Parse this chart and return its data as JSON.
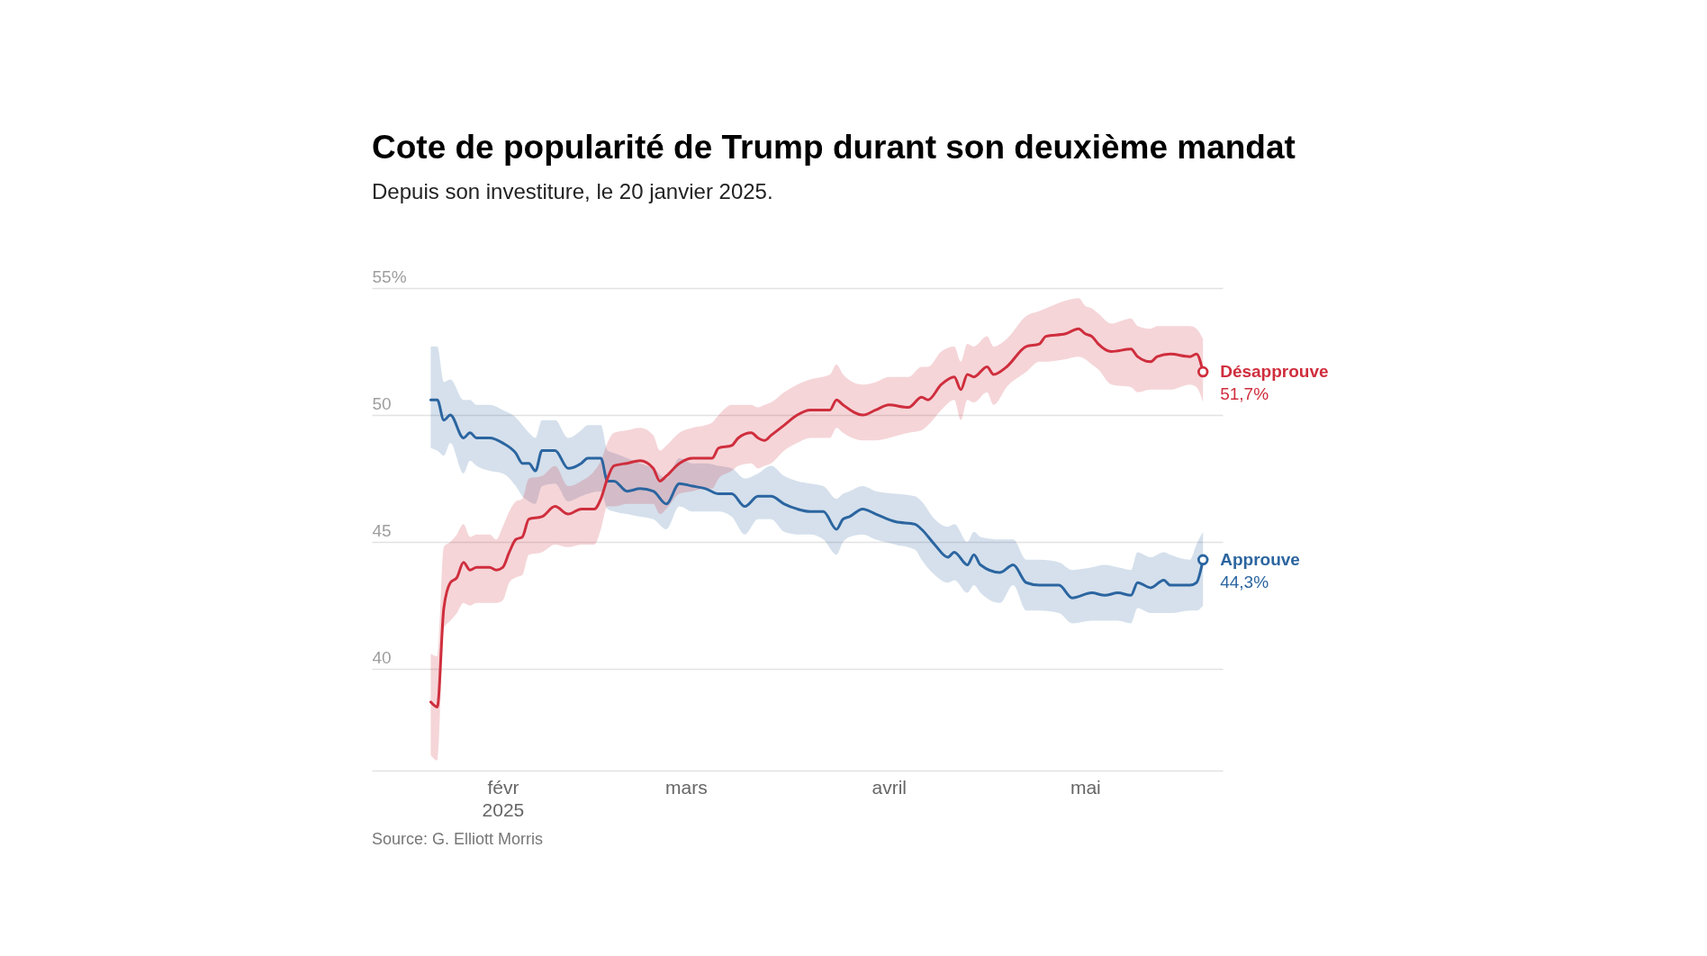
{
  "chart_data": {
    "type": "line",
    "title": "Cote de popularité de Trump durant son deuxième mandat",
    "subtitle": "Depuis son investiture, le 20 janvier 2025.",
    "annotations": [
      "Source: G. Elliott Morris"
    ],
    "xlim": [
      "2025-01-12",
      "2025-05-22"
    ],
    "xticks": [
      {
        "value": "2025-02-01",
        "label": "févr\n2025"
      },
      {
        "value": "2025-03-01",
        "label": "mars"
      },
      {
        "value": "2025-04-01",
        "label": "avril"
      },
      {
        "value": "2025-05-01",
        "label": "mai"
      }
    ],
    "ylim": [
      36,
      55
    ],
    "yticks": [
      40,
      45,
      50,
      {
        "value": 55,
        "label": "55%"
      }
    ],
    "grid": "y",
    "legend": false,
    "series": [
      {
        "name": "Approuve",
        "color": "#2b65a0",
        "x": [
          "2025-01-21",
          "2025-01-22",
          "2025-01-23",
          "2025-01-24",
          "2025-01-26",
          "2025-01-27",
          "2025-01-28",
          "2025-01-30",
          "2025-02-01",
          "2025-02-03",
          "2025-02-04",
          "2025-02-05",
          "2025-02-06",
          "2025-02-07",
          "2025-02-09",
          "2025-02-11",
          "2025-02-13",
          "2025-02-14",
          "2025-02-16",
          "2025-02-17",
          "2025-02-18",
          "2025-02-20",
          "2025-02-22",
          "2025-02-24",
          "2025-02-26",
          "2025-02-28",
          "2025-03-02",
          "2025-03-04",
          "2025-03-06",
          "2025-03-08",
          "2025-03-10",
          "2025-03-12",
          "2025-03-14",
          "2025-03-16",
          "2025-03-18",
          "2025-03-20",
          "2025-03-22",
          "2025-03-24",
          "2025-03-25",
          "2025-03-26",
          "2025-03-28",
          "2025-03-30",
          "2025-04-02",
          "2025-04-05",
          "2025-04-06",
          "2025-04-08",
          "2025-04-10",
          "2025-04-11",
          "2025-04-13",
          "2025-04-14",
          "2025-04-15",
          "2025-04-18",
          "2025-04-20",
          "2025-04-22",
          "2025-04-24",
          "2025-04-27",
          "2025-04-29",
          "2025-05-02",
          "2025-05-04",
          "2025-05-06",
          "2025-05-08",
          "2025-05-09",
          "2025-05-11",
          "2025-05-13",
          "2025-05-14",
          "2025-05-17",
          "2025-05-18",
          "2025-05-19"
        ],
        "values": [
          50.6,
          50.6,
          49.8,
          50.0,
          49.1,
          49.3,
          49.1,
          49.1,
          48.9,
          48.5,
          48.1,
          48.1,
          47.8,
          48.6,
          48.6,
          47.9,
          48.1,
          48.3,
          48.3,
          47.4,
          47.4,
          47.0,
          47.1,
          47.0,
          46.5,
          47.3,
          47.2,
          47.1,
          46.9,
          46.9,
          46.4,
          46.8,
          46.8,
          46.5,
          46.3,
          46.2,
          46.2,
          45.5,
          45.9,
          46.0,
          46.3,
          46.1,
          45.8,
          45.7,
          45.5,
          44.9,
          44.4,
          44.6,
          44.1,
          44.5,
          44.1,
          43.8,
          44.1,
          43.4,
          43.3,
          43.3,
          42.8,
          43.0,
          42.9,
          43.0,
          42.9,
          43.4,
          43.2,
          43.5,
          43.3,
          43.3,
          43.4,
          44.3
        ],
        "lower": [
          48.7,
          48.6,
          48.4,
          48.9,
          47.7,
          48.2,
          48.0,
          47.8,
          47.7,
          47.2,
          46.8,
          46.6,
          46.5,
          47.2,
          47.3,
          46.6,
          46.8,
          46.9,
          47.0,
          46.3,
          46.2,
          46.1,
          46.0,
          45.9,
          45.5,
          46.4,
          46.2,
          46.2,
          46.2,
          46.0,
          45.3,
          45.9,
          45.9,
          45.4,
          45.3,
          45.3,
          45.1,
          44.5,
          45.0,
          45.2,
          45.3,
          45.1,
          44.9,
          44.7,
          44.3,
          43.7,
          43.4,
          43.5,
          43.0,
          43.3,
          43.0,
          42.6,
          43.3,
          42.3,
          42.3,
          42.2,
          41.8,
          41.9,
          41.9,
          41.9,
          41.8,
          42.4,
          42.2,
          42.2,
          42.2,
          42.3,
          42.3,
          42.5
        ],
        "upper": [
          52.7,
          52.7,
          51.3,
          51.4,
          50.6,
          50.6,
          50.4,
          50.4,
          50.2,
          49.9,
          49.6,
          49.3,
          49.1,
          49.8,
          49.8,
          49.1,
          49.4,
          49.6,
          49.6,
          48.6,
          48.5,
          48.3,
          48.1,
          47.9,
          47.5,
          48.3,
          48.1,
          48.1,
          48.0,
          47.9,
          47.5,
          47.7,
          48.0,
          47.6,
          47.4,
          47.3,
          47.2,
          46.7,
          46.9,
          47.0,
          47.2,
          47.0,
          46.9,
          46.8,
          46.6,
          45.9,
          45.6,
          45.7,
          45.0,
          45.4,
          45.2,
          45.1,
          45.1,
          44.3,
          44.3,
          44.2,
          43.9,
          44.0,
          44.1,
          44.0,
          43.9,
          44.6,
          44.4,
          44.6,
          44.5,
          44.3,
          44.9,
          45.4
        ],
        "value_labels": [
          null,
          null,
          null,
          null,
          null,
          null,
          null,
          null,
          null,
          null,
          null,
          null,
          null,
          null,
          null,
          null,
          null,
          null,
          null,
          null,
          null,
          null,
          null,
          null,
          null,
          null,
          null,
          null,
          null,
          null,
          null,
          null,
          null,
          null,
          null,
          null,
          null,
          null,
          null,
          null,
          null,
          null,
          null,
          null,
          null,
          null,
          null,
          null,
          null,
          null,
          null,
          null,
          null,
          null,
          null,
          null,
          null,
          null,
          null,
          null,
          null,
          null,
          null,
          null,
          null,
          null,
          null,
          "44,3%"
        ]
      },
      {
        "name": "Désapprouve",
        "color": "#cf2e3d",
        "x": [
          "2025-01-21",
          "2025-01-22",
          "2025-01-23",
          "2025-01-24",
          "2025-01-25",
          "2025-01-26",
          "2025-01-27",
          "2025-01-28",
          "2025-01-30",
          "2025-01-31",
          "2025-02-01",
          "2025-02-02",
          "2025-02-03",
          "2025-02-04",
          "2025-02-05",
          "2025-02-07",
          "2025-02-09",
          "2025-02-11",
          "2025-02-13",
          "2025-02-15",
          "2025-02-16",
          "2025-02-17",
          "2025-02-18",
          "2025-02-20",
          "2025-02-22",
          "2025-02-24",
          "2025-02-25",
          "2025-02-26",
          "2025-02-28",
          "2025-03-02",
          "2025-03-04",
          "2025-03-05",
          "2025-03-06",
          "2025-03-08",
          "2025-03-09",
          "2025-03-11",
          "2025-03-12",
          "2025-03-13",
          "2025-03-14",
          "2025-03-16",
          "2025-03-18",
          "2025-03-20",
          "2025-03-23",
          "2025-03-24",
          "2025-03-25",
          "2025-03-28",
          "2025-03-30",
          "2025-04-01",
          "2025-04-04",
          "2025-04-06",
          "2025-04-07",
          "2025-04-09",
          "2025-04-11",
          "2025-04-12",
          "2025-04-13",
          "2025-04-14",
          "2025-04-16",
          "2025-04-17",
          "2025-04-19",
          "2025-04-22",
          "2025-04-24",
          "2025-04-25",
          "2025-04-28",
          "2025-04-30",
          "2025-05-01",
          "2025-05-02",
          "2025-05-03",
          "2025-05-05",
          "2025-05-08",
          "2025-05-09",
          "2025-05-11",
          "2025-05-12",
          "2025-05-14",
          "2025-05-17",
          "2025-05-18",
          "2025-05-19"
        ],
        "values": [
          38.7,
          38.5,
          42.4,
          43.4,
          43.6,
          44.2,
          43.9,
          44.0,
          44.0,
          43.9,
          44.0,
          44.6,
          45.1,
          45.2,
          45.9,
          46.0,
          46.4,
          46.1,
          46.3,
          46.3,
          46.7,
          47.5,
          48.0,
          48.1,
          48.2,
          47.9,
          47.4,
          47.6,
          48.1,
          48.3,
          48.3,
          48.3,
          48.7,
          48.8,
          49.1,
          49.3,
          49.1,
          49.0,
          49.2,
          49.6,
          50.0,
          50.2,
          50.2,
          50.6,
          50.4,
          50.0,
          50.2,
          50.4,
          50.3,
          50.7,
          50.6,
          51.2,
          51.5,
          51.0,
          51.6,
          51.5,
          51.9,
          51.6,
          51.9,
          52.7,
          52.8,
          53.1,
          53.2,
          53.4,
          53.2,
          53.1,
          52.8,
          52.5,
          52.6,
          52.3,
          52.1,
          52.3,
          52.4,
          52.3,
          52.4,
          51.7
        ],
        "lower": [
          36.6,
          36.4,
          41.6,
          41.9,
          42.2,
          42.6,
          42.5,
          42.6,
          42.6,
          42.6,
          42.7,
          43.4,
          43.6,
          43.7,
          44.5,
          44.6,
          44.9,
          44.8,
          44.9,
          44.9,
          45.5,
          46.4,
          46.4,
          46.5,
          46.5,
          46.5,
          46.1,
          46.3,
          46.9,
          47.0,
          47.1,
          47.1,
          47.5,
          47.8,
          48.0,
          48.1,
          47.9,
          48.0,
          48.1,
          48.6,
          48.9,
          49.1,
          49.1,
          49.5,
          49.3,
          49.0,
          49.0,
          49.1,
          49.3,
          49.4,
          49.6,
          50.2,
          50.6,
          49.8,
          50.6,
          50.5,
          50.9,
          50.4,
          51.1,
          51.7,
          52.1,
          52.1,
          52.2,
          52.3,
          52.2,
          52.0,
          51.8,
          51.2,
          51.1,
          50.9,
          51.0,
          51.0,
          51.0,
          51.2,
          51.1,
          50.5
        ],
        "upper": [
          40.6,
          40.5,
          44.8,
          45.0,
          45.3,
          45.7,
          45.2,
          45.3,
          45.3,
          45.1,
          45.6,
          46.2,
          46.6,
          46.7,
          47.5,
          47.6,
          48.0,
          47.2,
          47.4,
          47.8,
          48.2,
          48.9,
          49.3,
          49.4,
          49.5,
          49.2,
          48.6,
          48.8,
          49.3,
          49.5,
          49.6,
          49.7,
          50.0,
          50.4,
          50.4,
          50.4,
          50.3,
          50.4,
          50.5,
          50.9,
          51.2,
          51.4,
          51.6,
          52.0,
          51.6,
          51.2,
          51.3,
          51.5,
          51.5,
          51.9,
          51.9,
          52.5,
          52.7,
          52.1,
          52.8,
          52.7,
          53.1,
          52.7,
          53.0,
          53.9,
          54.1,
          54.2,
          54.5,
          54.6,
          54.3,
          54.2,
          54.0,
          53.6,
          53.8,
          53.5,
          53.4,
          53.5,
          53.5,
          53.5,
          53.4,
          53.0
        ],
        "value_labels": [
          null,
          null,
          null,
          null,
          null,
          null,
          null,
          null,
          null,
          null,
          null,
          null,
          null,
          null,
          null,
          null,
          null,
          null,
          null,
          null,
          null,
          null,
          null,
          null,
          null,
          null,
          null,
          null,
          null,
          null,
          null,
          null,
          null,
          null,
          null,
          null,
          null,
          null,
          null,
          null,
          null,
          null,
          null,
          null,
          null,
          null,
          null,
          null,
          null,
          null,
          null,
          null,
          null,
          null,
          null,
          null,
          null,
          null,
          null,
          null,
          null,
          null,
          null,
          null,
          null,
          null,
          null,
          null,
          null,
          null,
          null,
          null,
          null,
          null,
          null,
          "51,7%"
        ]
      }
    ]
  }
}
